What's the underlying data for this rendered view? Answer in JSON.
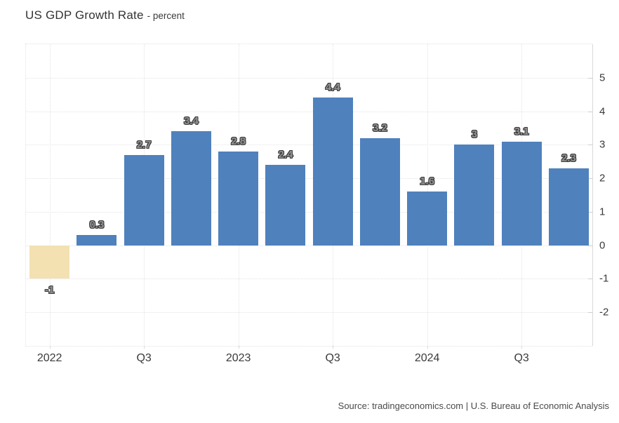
{
  "header": {
    "title": "US GDP Growth Rate",
    "subtitle": "- percent"
  },
  "footer": {
    "source": "Source: tradingeconomics.com | U.S. Bureau of Economic Analysis"
  },
  "colors": {
    "bar_positive": "#4f81bd",
    "bar_negative": "#f3e1b2",
    "grid": "#e4e4e4",
    "axis_line": "#d8d8d8",
    "axis_text": "#3a3a3a",
    "bar_label_fill": "#929292",
    "bar_label_outline": "#3d3d3d"
  },
  "chart_data": {
    "type": "bar",
    "title": "US GDP Growth Rate",
    "ylabel": "percent",
    "values": [
      -1,
      0.3,
      2.7,
      3.4,
      2.8,
      2.4,
      4.4,
      3.2,
      1.6,
      3,
      3.1,
      2.3
    ],
    "bar_labels": [
      "-1",
      "0.3",
      "2.7",
      "3.4",
      "2.8",
      "2.4",
      "4.4",
      "3.2",
      "1.6",
      "3",
      "3.1",
      "2.3"
    ],
    "x_ticks": [
      {
        "index": 0,
        "label": "2022"
      },
      {
        "index": 2,
        "label": "Q3"
      },
      {
        "index": 4,
        "label": "2023"
      },
      {
        "index": 6,
        "label": "Q3"
      },
      {
        "index": 8,
        "label": "2024"
      },
      {
        "index": 10,
        "label": "Q3"
      }
    ],
    "y_ticks": [
      5,
      4,
      3,
      2,
      1,
      0,
      -1,
      -2
    ],
    "ylim": [
      -3,
      6
    ],
    "grid": "dotted",
    "y_axis_position": "right",
    "legend": "none"
  }
}
